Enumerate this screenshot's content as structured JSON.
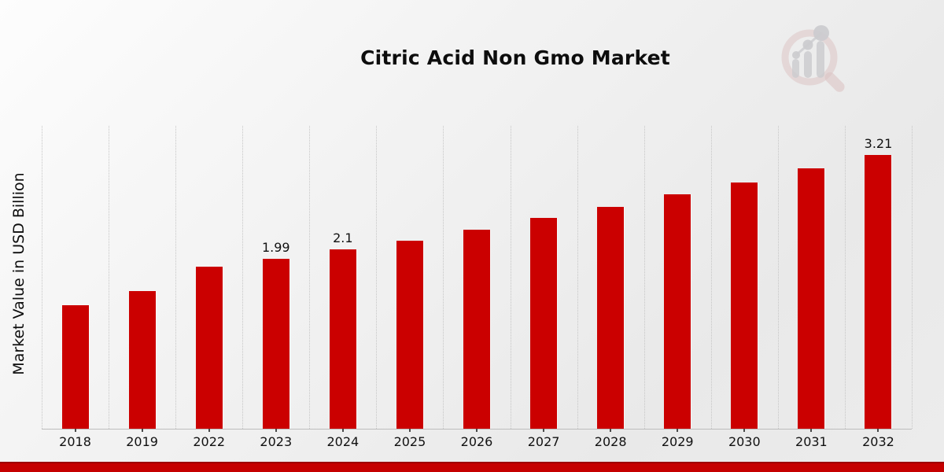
{
  "page": {
    "title": "Citric Acid Non Gmo Market"
  },
  "chart_data": {
    "type": "bar",
    "title": "Citric Acid Non Gmo Market",
    "xlabel": "",
    "ylabel": "Market Value in USD Billion",
    "categories": [
      "2018",
      "2019",
      "2022",
      "2023",
      "2024",
      "2025",
      "2026",
      "2027",
      "2028",
      "2029",
      "2030",
      "2031",
      "2032"
    ],
    "values": [
      1.45,
      1.61,
      1.9,
      1.99,
      2.1,
      2.2,
      2.33,
      2.47,
      2.6,
      2.75,
      2.89,
      3.05,
      3.21
    ],
    "data_labels": [
      "",
      "",
      "",
      "1.99",
      "2.1",
      "",
      "",
      "",
      "",
      "",
      "",
      "",
      "3.21"
    ],
    "ylim": [
      0,
      3.55
    ],
    "grid": "vertical dotted category separators",
    "legend": "none",
    "bar_color": "#cb0000",
    "label_color": "#111111",
    "axis_line_color": "#bdbdbd"
  },
  "branding": {
    "logo_icon": "magnifier-bar-chart-watermark"
  },
  "footer": {
    "banner_color": "#c50000",
    "banner_edge_color": "#9d0000"
  }
}
